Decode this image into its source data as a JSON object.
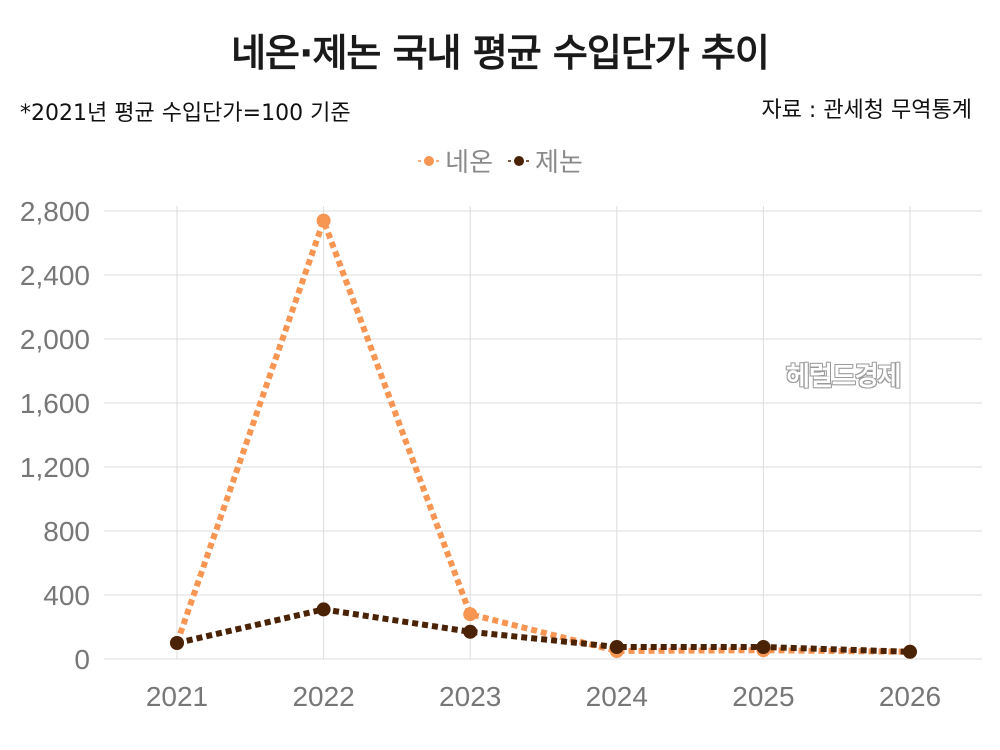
{
  "title": "네온·제논 국내 평균 수입단가 추이",
  "note": "*2021년 평균 수입단가=100 기준",
  "source": "자료 : 관세청 무역통계",
  "watermark": "헤럴드경제",
  "colors": {
    "neon": "#F79553",
    "xenon": "#4A2206",
    "grid": "#dcdcdc"
  },
  "chart_data": {
    "type": "line",
    "categories": [
      "2021",
      "2022",
      "2023",
      "2024",
      "2025",
      "2026"
    ],
    "series": [
      {
        "name": "네온",
        "values": [
          100,
          2740,
          280,
          50,
          55,
          45
        ],
        "color": "#F79553"
      },
      {
        "name": "제논",
        "values": [
          100,
          310,
          170,
          75,
          75,
          45
        ],
        "color": "#4A2206"
      }
    ],
    "ylim": [
      0,
      2800
    ],
    "yticks": [
      0,
      400,
      800,
      1200,
      1600,
      2000,
      2400,
      2800
    ],
    "ytick_labels": [
      "0",
      "400",
      "800",
      "1,200",
      "1,600",
      "2,000",
      "2,400",
      "2,800"
    ],
    "grid": true,
    "legend": "top-center"
  }
}
